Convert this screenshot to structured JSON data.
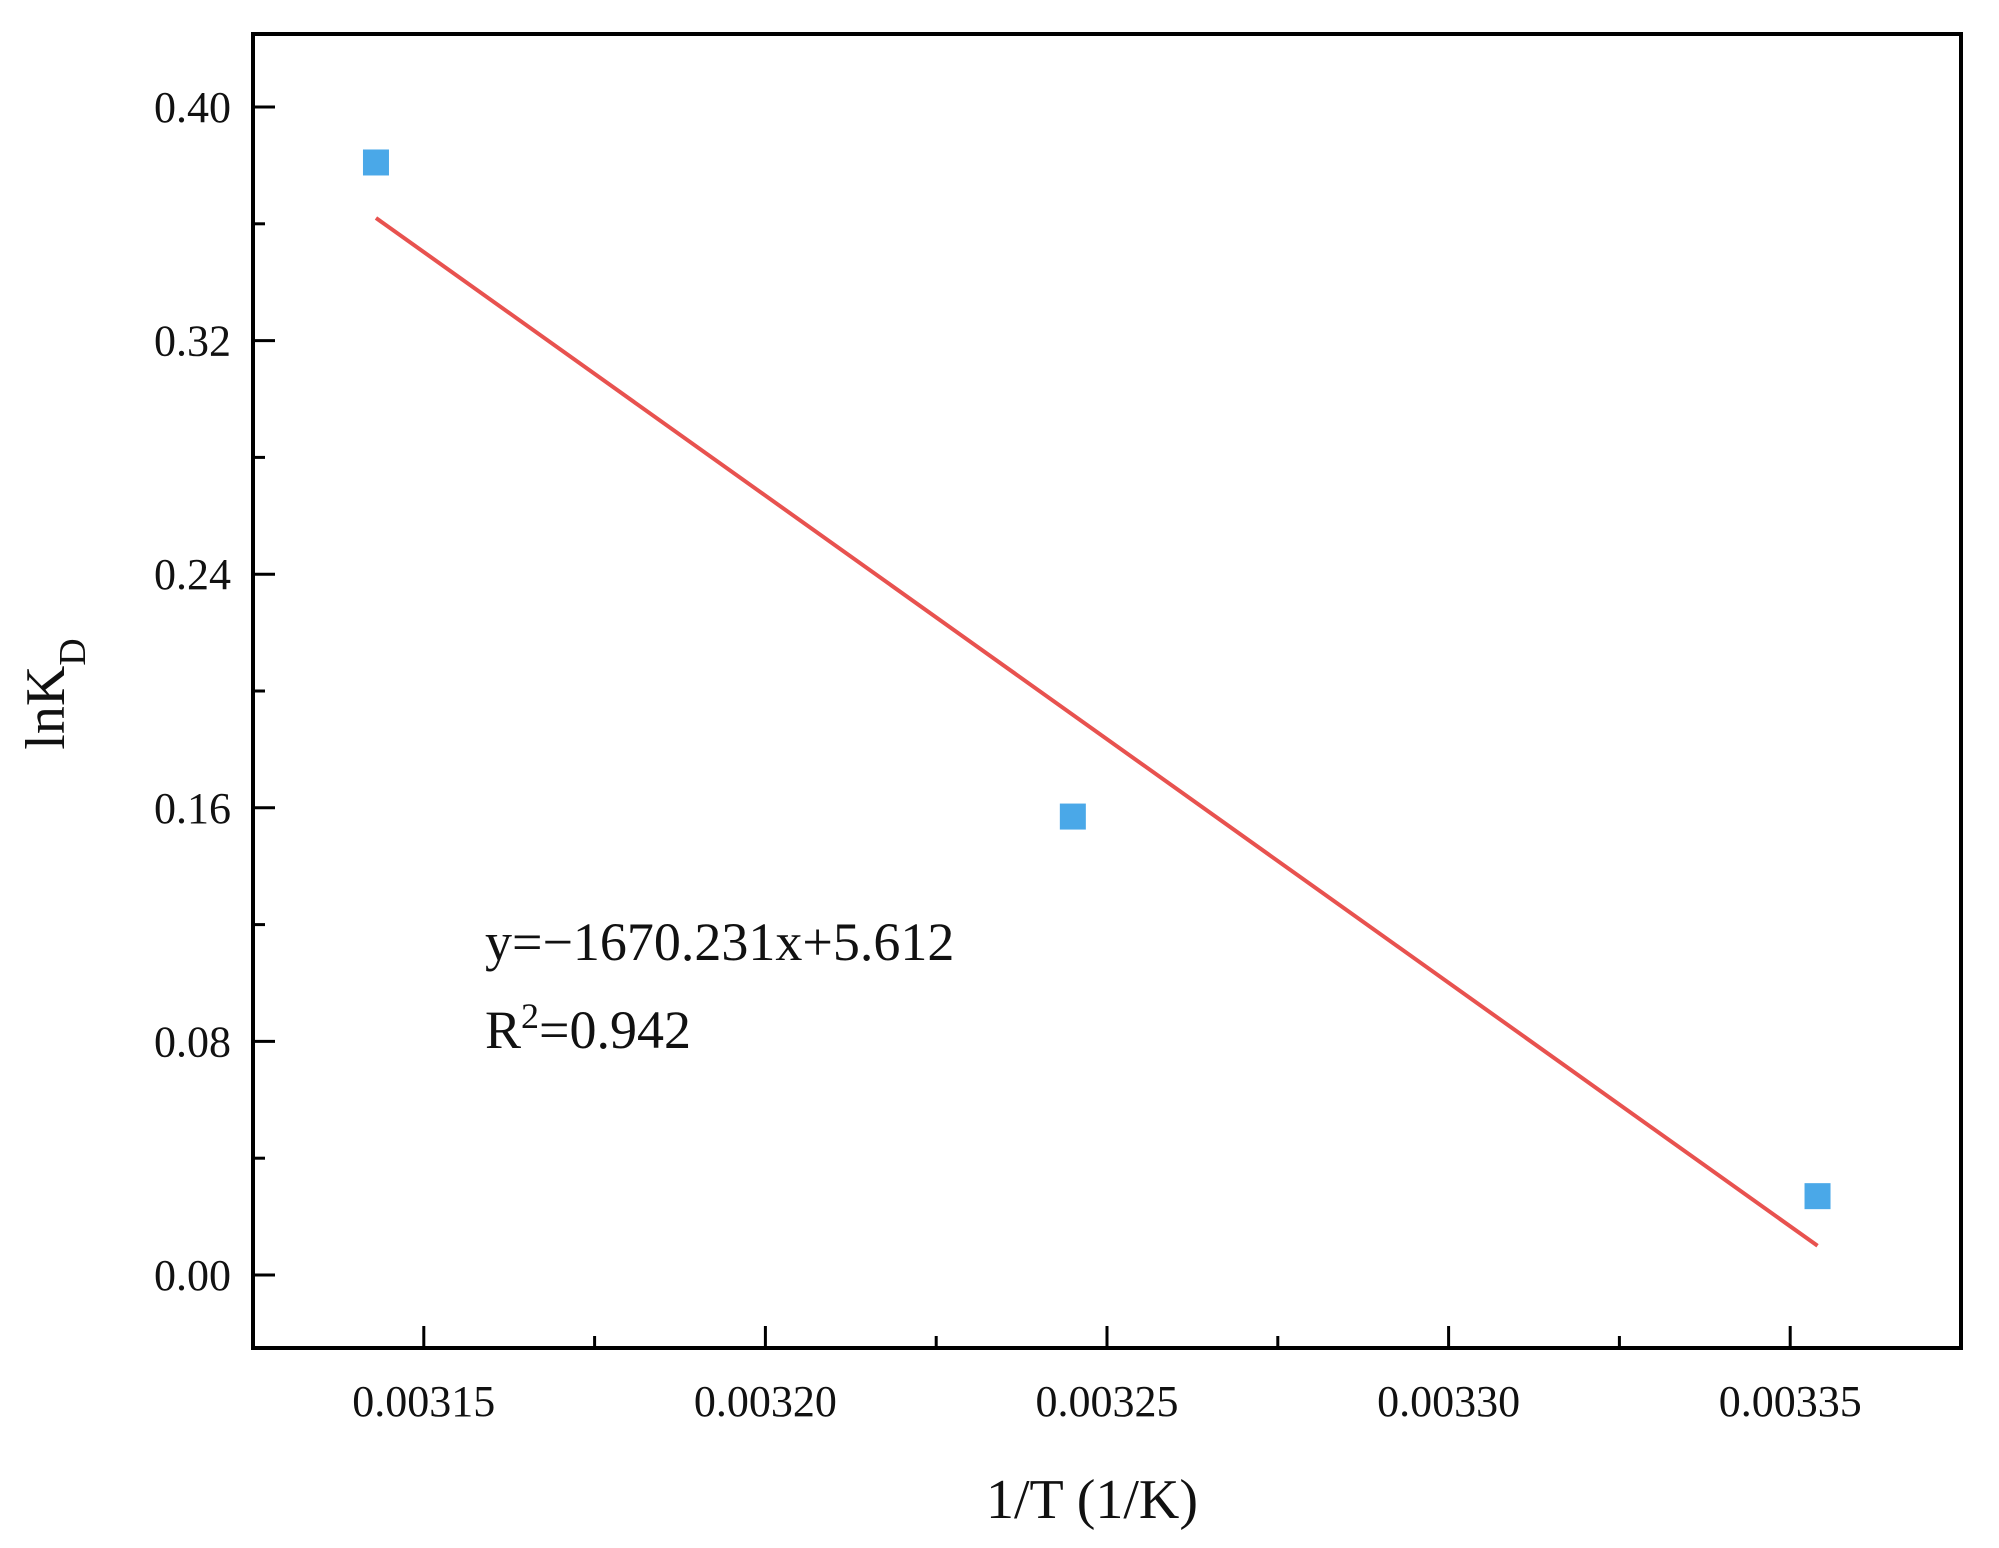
{
  "chart_data": {
    "type": "scatter",
    "title": "",
    "xlabel": "1/T (1/K)",
    "ylabel": {
      "main": "lnK",
      "sub": "D"
    },
    "xlim": [
      0.003125,
      0.003375
    ],
    "ylim": [
      -0.025,
      0.425
    ],
    "x_ticks": [
      "0.00315",
      "0.00320",
      "0.00325",
      "0.00330",
      "0.00335"
    ],
    "x_tick_values": [
      0.00315,
      0.0032,
      0.00325,
      0.0033,
      0.00335
    ],
    "x_minor_tick_values": [
      0.003175,
      0.003225,
      0.003275,
      0.003325
    ],
    "y_ticks": [
      "0.00",
      "0.08",
      "0.16",
      "0.24",
      "0.32",
      "0.40"
    ],
    "y_tick_values": [
      0.0,
      0.08,
      0.16,
      0.24,
      0.32,
      0.4
    ],
    "y_minor_tick_values": [
      0.04,
      0.12,
      0.2,
      0.28,
      0.36
    ],
    "grid": false,
    "legend": "none",
    "series": [
      {
        "points": [
          {
            "x": 0.003143,
            "y": 0.381
          },
          {
            "x": 0.003245,
            "y": 0.157
          },
          {
            "x": 0.003354,
            "y": 0.027
          }
        ],
        "marker": "square",
        "color": "#4aa8e8"
      }
    ],
    "fit_line": {
      "x": [
        0.003143,
        0.003354
      ],
      "y": [
        0.362,
        0.01
      ],
      "color": "#e8524f"
    },
    "annotation": {
      "equation": "y=−1670.231x+5.612",
      "r2_prefix": "R",
      "r2_sup": "2",
      "r2_value": "=0.942"
    }
  }
}
